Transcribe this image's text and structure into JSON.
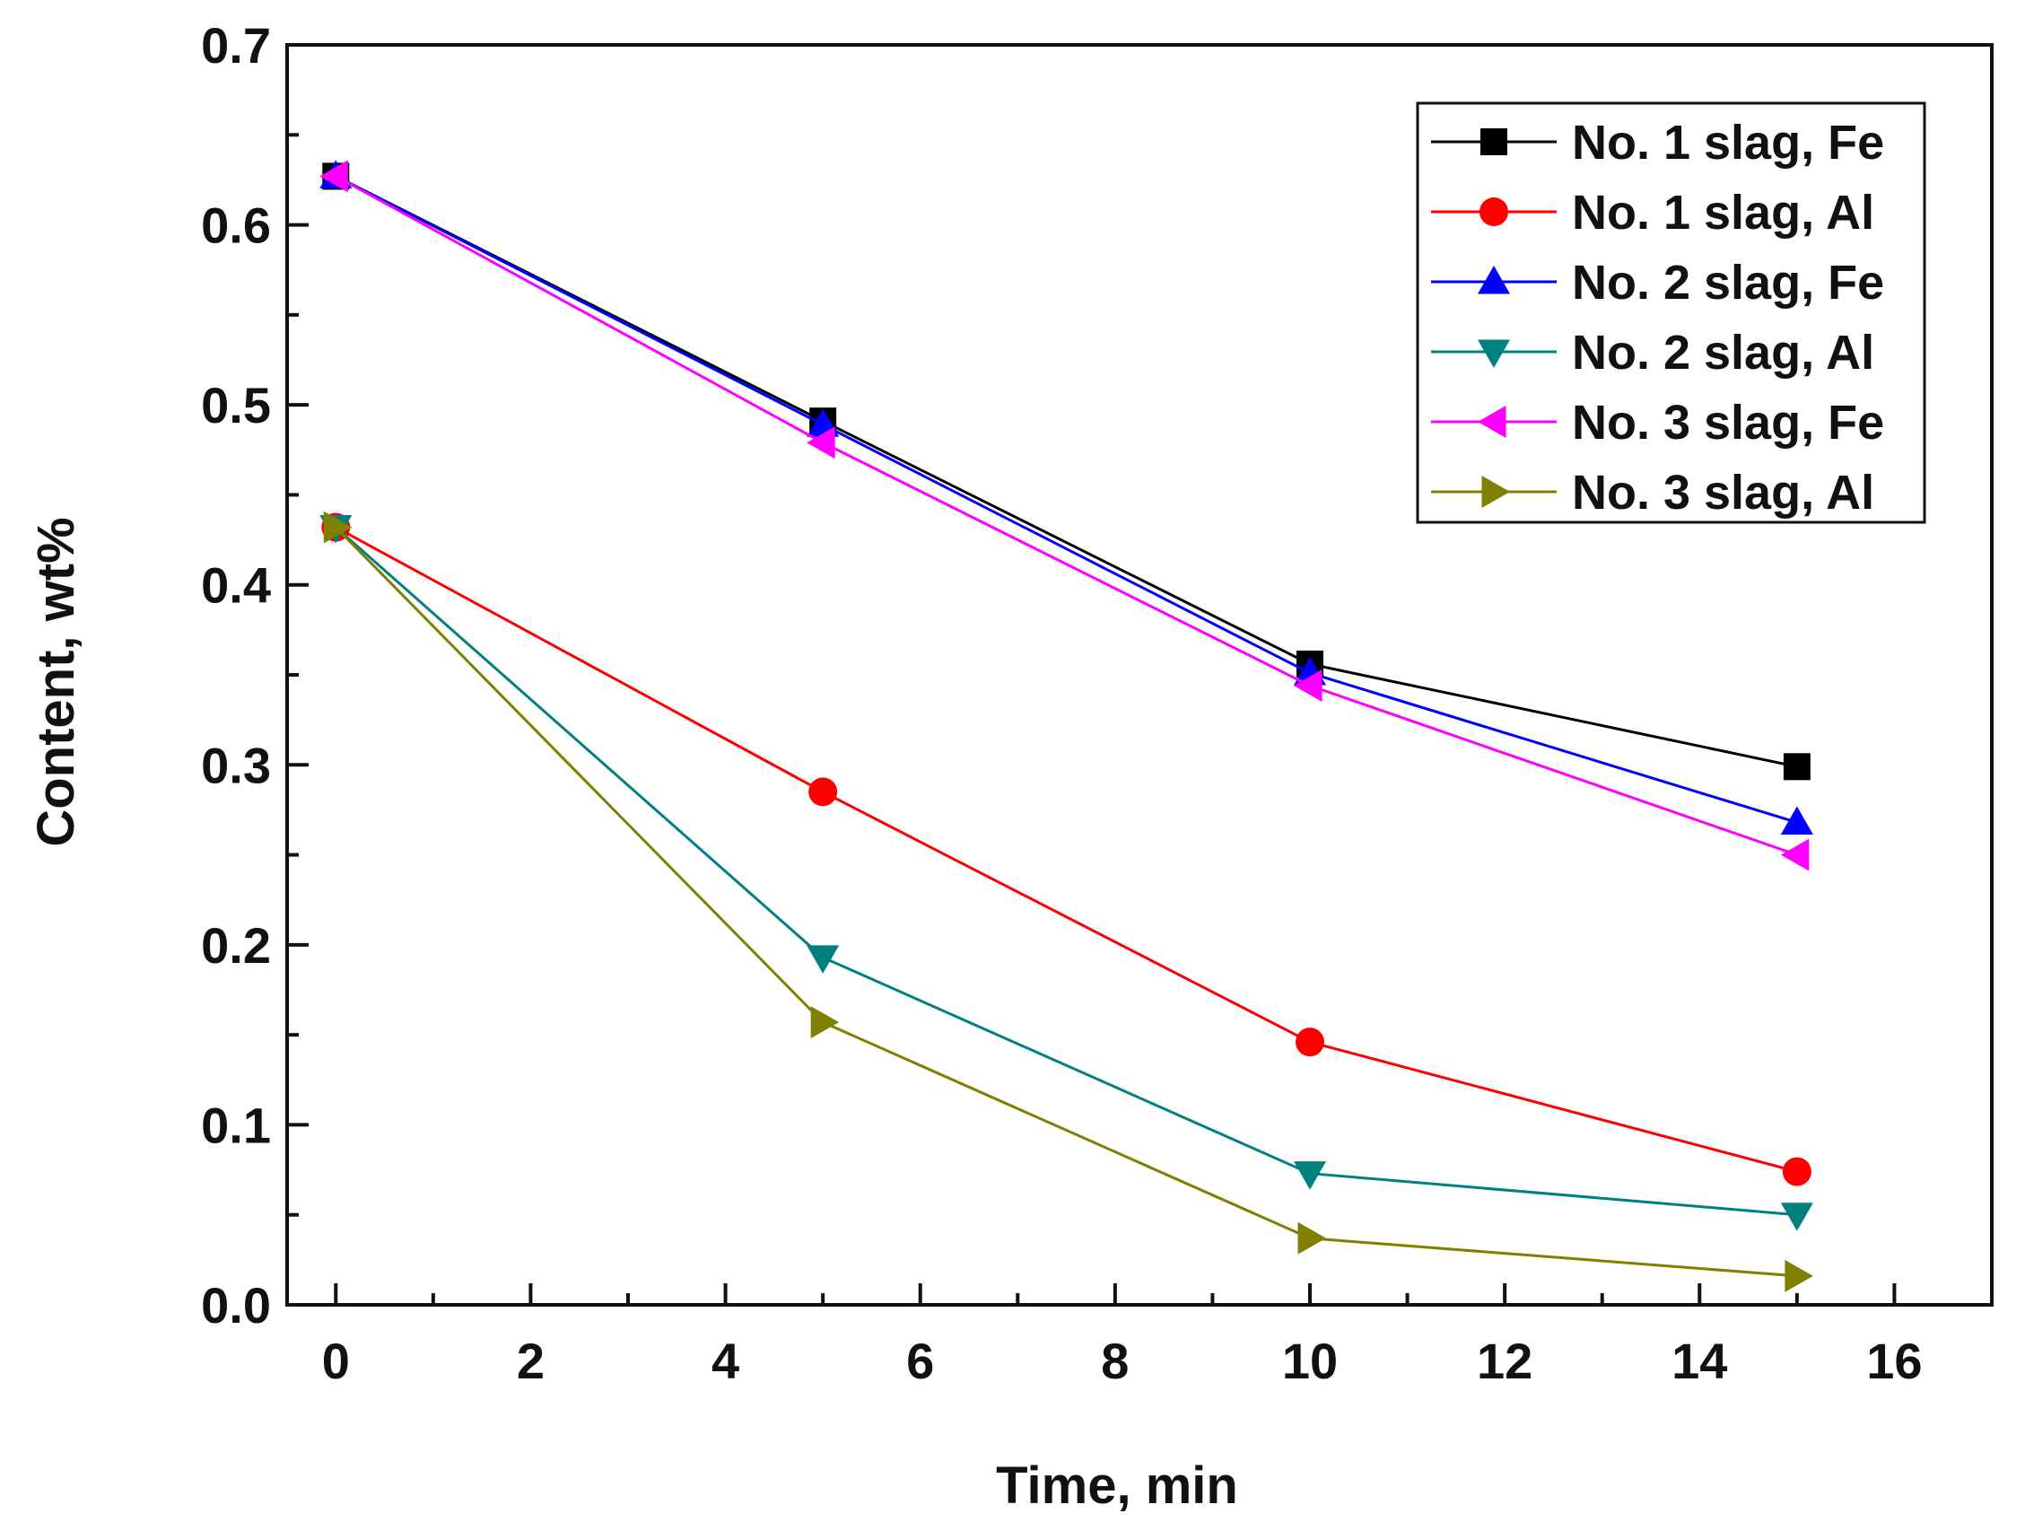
{
  "chart_data": {
    "type": "line",
    "title": "",
    "xlabel": "Time, min",
    "ylabel": "Content, wt%",
    "xlim": [
      -0.5,
      17
    ],
    "ylim": [
      0,
      0.7
    ],
    "x_ticks": [
      0,
      2,
      4,
      6,
      8,
      10,
      12,
      14,
      16
    ],
    "x_tick_labels": [
      "0",
      "2",
      "4",
      "6",
      "8",
      "10",
      "12",
      "14",
      "16"
    ],
    "y_ticks": [
      0.0,
      0.1,
      0.2,
      0.3,
      0.4,
      0.5,
      0.6,
      0.7
    ],
    "y_tick_labels": [
      "0.0",
      "0.1",
      "0.2",
      "0.3",
      "0.4",
      "0.5",
      "0.6",
      "0.7"
    ],
    "grid": false,
    "legend_position": "top-right",
    "series": [
      {
        "name": "No. 1 slag, Fe",
        "color": "#000000",
        "marker": "square",
        "x": [
          0,
          5,
          10,
          15
        ],
        "values": [
          0.627,
          0.491,
          0.356,
          0.299
        ]
      },
      {
        "name": "No. 1 slag, Al",
        "color": "#ff0000",
        "marker": "circle",
        "x": [
          0,
          5,
          10,
          15
        ],
        "values": [
          0.432,
          0.285,
          0.146,
          0.074
        ]
      },
      {
        "name": "No. 2 slag, Fe",
        "color": "#0000ff",
        "marker": "triangle-up",
        "x": [
          0,
          5,
          10,
          15
        ],
        "values": [
          0.627,
          0.489,
          0.351,
          0.268
        ]
      },
      {
        "name": "No. 2 slag, Al",
        "color": "#008080",
        "marker": "triangle-down",
        "x": [
          0,
          5,
          10,
          15
        ],
        "values": [
          0.432,
          0.193,
          0.073,
          0.05
        ]
      },
      {
        "name": "No. 3 slag, Fe",
        "color": "#ff00ff",
        "marker": "triangle-left",
        "x": [
          0,
          5,
          10,
          15
        ],
        "values": [
          0.627,
          0.479,
          0.344,
          0.25
        ]
      },
      {
        "name": "No. 3 slag, Al",
        "color": "#808000",
        "marker": "triangle-right",
        "x": [
          0,
          5,
          10,
          15
        ],
        "values": [
          0.432,
          0.157,
          0.037,
          0.016
        ]
      }
    ]
  }
}
